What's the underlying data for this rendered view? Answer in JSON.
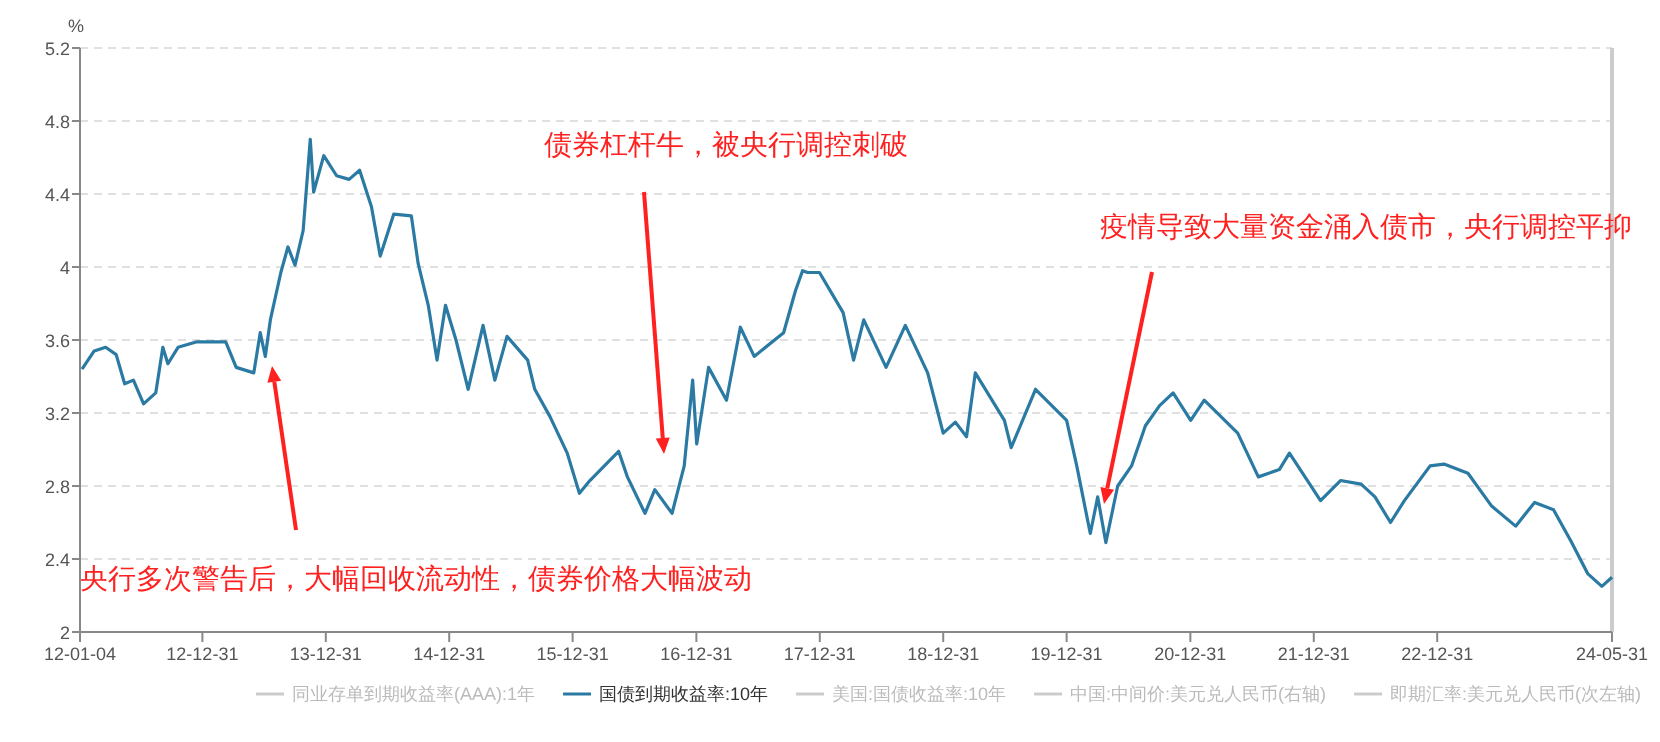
{
  "chart_data": {
    "type": "line",
    "ylabel": "%",
    "xlim": [
      "2012-01-04",
      "2024-05-31"
    ],
    "ylim": [
      2,
      5.2
    ],
    "xticks": [
      {
        "value": "2012-01-04",
        "label": "12-01-04"
      },
      {
        "value": "2012-12-31",
        "label": "12-12-31"
      },
      {
        "value": "2013-12-31",
        "label": "13-12-31"
      },
      {
        "value": "2014-12-31",
        "label": "14-12-31"
      },
      {
        "value": "2015-12-31",
        "label": "15-12-31"
      },
      {
        "value": "2016-12-31",
        "label": "16-12-31"
      },
      {
        "value": "2017-12-31",
        "label": "17-12-31"
      },
      {
        "value": "2018-12-31",
        "label": "18-12-31"
      },
      {
        "value": "2019-12-31",
        "label": "19-12-31"
      },
      {
        "value": "2020-12-31",
        "label": "20-12-31"
      },
      {
        "value": "2021-12-31",
        "label": "21-12-31"
      },
      {
        "value": "2022-12-31",
        "label": "22-12-31"
      },
      {
        "value": "2024-05-31",
        "label": "24-05-31"
      }
    ],
    "yticks": [
      2,
      2.4,
      2.8,
      3.2,
      3.6,
      4,
      4.4,
      4.8,
      5.2
    ],
    "grid": "y",
    "legend": "bottom",
    "series": [
      {
        "name": "同业存单到期收益率(AAA):1年",
        "color": "#cccccc"
      },
      {
        "name": "国债到期收益率:10年",
        "color": "#2b7aa3",
        "x": [
          "2012-01-10",
          "2012-02-15",
          "2012-03-20",
          "2012-04-20",
          "2012-05-15",
          "2012-06-10",
          "2012-07-10",
          "2012-08-15",
          "2012-09-05",
          "2012-09-20",
          "2012-10-20",
          "2012-12-15",
          "2013-03-10",
          "2013-04-10",
          "2013-06-01",
          "2013-06-20",
          "2013-07-05",
          "2013-07-20",
          "2013-08-20",
          "2013-09-10",
          "2013-10-01",
          "2013-10-25",
          "2013-11-15",
          "2013-11-25",
          "2013-12-25",
          "2014-02-01",
          "2014-03-10",
          "2014-04-10",
          "2014-05-15",
          "2014-06-10",
          "2014-07-20",
          "2014-09-10",
          "2014-09-30",
          "2014-10-30",
          "2014-11-25",
          "2014-12-20",
          "2015-01-20",
          "2015-02-25",
          "2015-04-10",
          "2015-05-15",
          "2015-06-20",
          "2015-08-20",
          "2015-09-10",
          "2015-10-25",
          "2015-12-15",
          "2016-01-20",
          "2016-02-20",
          "2016-05-15",
          "2016-06-10",
          "2016-08-01",
          "2016-08-30",
          "2016-10-20",
          "2016-11-25",
          "2016-12-20",
          "2017-01-01",
          "2017-02-05",
          "2017-03-30",
          "2017-05-10",
          "2017-06-20",
          "2017-09-15",
          "2017-10-20",
          "2017-11-10",
          "2017-11-25",
          "2017-12-30",
          "2018-03-10",
          "2018-04-10",
          "2018-05-10",
          "2018-07-15",
          "2018-09-10",
          "2018-11-15",
          "2018-12-31",
          "2019-02-05",
          "2019-03-10",
          "2019-04-05",
          "2019-06-30",
          "2019-07-20",
          "2019-09-30",
          "2019-12-31",
          "2020-01-30",
          "2020-03-10",
          "2020-04-01",
          "2020-04-25",
          "2020-05-30",
          "2020-07-10",
          "2020-08-20",
          "2020-10-01",
          "2020-11-10",
          "2021-01-01",
          "2021-02-10",
          "2021-05-20",
          "2021-07-20",
          "2021-09-20",
          "2021-10-20",
          "2022-01-20",
          "2022-03-20",
          "2022-05-20",
          "2022-06-30",
          "2022-08-15",
          "2022-09-25",
          "2022-12-10",
          "2023-01-20",
          "2023-04-01",
          "2023-06-10",
          "2023-08-20",
          "2023-10-15",
          "2023-12-10",
          "2024-01-30",
          "2024-03-20",
          "2024-05-01",
          "2024-05-31"
        ],
        "values": [
          3.44,
          3.54,
          3.56,
          3.52,
          3.36,
          3.38,
          3.25,
          3.31,
          3.56,
          3.47,
          3.56,
          3.59,
          3.59,
          3.45,
          3.42,
          3.64,
          3.51,
          3.71,
          3.97,
          4.11,
          4.01,
          4.2,
          4.7,
          4.41,
          4.61,
          4.5,
          4.48,
          4.53,
          4.33,
          4.06,
          4.29,
          4.28,
          4.02,
          3.79,
          3.49,
          3.79,
          3.6,
          3.33,
          3.68,
          3.38,
          3.62,
          3.49,
          3.33,
          3.18,
          2.98,
          2.76,
          2.83,
          2.99,
          2.85,
          2.65,
          2.78,
          2.65,
          2.91,
          3.38,
          3.03,
          3.45,
          3.27,
          3.67,
          3.51,
          3.64,
          3.87,
          3.98,
          3.97,
          3.97,
          3.75,
          3.49,
          3.71,
          3.45,
          3.68,
          3.42,
          3.09,
          3.15,
          3.07,
          3.42,
          3.16,
          3.01,
          3.33,
          3.16,
          2.91,
          2.54,
          2.74,
          2.49,
          2.8,
          2.91,
          3.13,
          3.24,
          3.31,
          3.16,
          3.27,
          3.09,
          2.85,
          2.89,
          2.98,
          2.72,
          2.83,
          2.81,
          2.74,
          2.6,
          2.72,
          2.91,
          2.92,
          2.87,
          2.69,
          2.58,
          2.71,
          2.67,
          2.5,
          2.32,
          2.25,
          2.3
        ]
      },
      {
        "name": "美国:国债收益率:10年",
        "color": "#cccccc"
      },
      {
        "name": "中国:中间价:美元兑人民币(右轴)",
        "color": "#cccccc"
      },
      {
        "name": "即期汇率:美元兑人民币(次左轴)",
        "color": "#cccccc"
      }
    ],
    "annotations": [
      "央行多次警告后，大幅回收流动性，债券价格大幅波动",
      "债券杠杆牛，被央行调控刺破",
      "疫情导致大量资金涌入债市，央行调控平抑"
    ]
  }
}
